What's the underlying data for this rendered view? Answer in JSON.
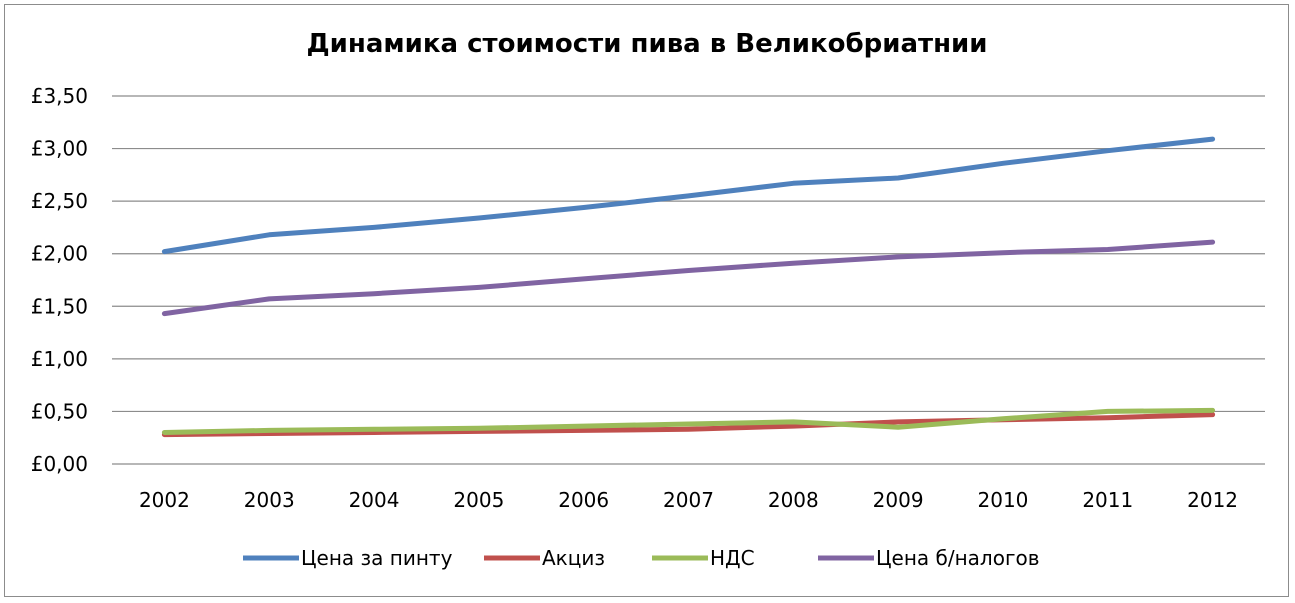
{
  "chart_data": {
    "type": "line",
    "title": "Динамика стоимости пива в Великобриатнии",
    "xlabel": "",
    "ylabel": "",
    "categories": [
      "2002",
      "2003",
      "2004",
      "2005",
      "2006",
      "2007",
      "2008",
      "2009",
      "2010",
      "2011",
      "2012"
    ],
    "y_ticks": [
      "£0,00",
      "£0,50",
      "£1,00",
      "£1,50",
      "£2,00",
      "£2,50",
      "£3,00",
      "£3,50"
    ],
    "ylim": [
      0,
      3.5
    ],
    "grid": true,
    "legend_position": "bottom",
    "series": [
      {
        "name": "Цена за пинту",
        "color": "#4f81bd",
        "values": [
          2.02,
          2.18,
          2.25,
          2.34,
          2.44,
          2.55,
          2.67,
          2.72,
          2.86,
          2.98,
          3.09
        ]
      },
      {
        "name": "Акциз",
        "color": "#c0504d",
        "values": [
          0.28,
          0.29,
          0.3,
          0.31,
          0.32,
          0.33,
          0.36,
          0.4,
          0.42,
          0.44,
          0.47
        ]
      },
      {
        "name": "НДС",
        "color": "#9bbb59",
        "values": [
          0.3,
          0.32,
          0.33,
          0.34,
          0.36,
          0.38,
          0.4,
          0.35,
          0.43,
          0.5,
          0.51
        ]
      },
      {
        "name": "Цена б/налогов",
        "color": "#8064a2",
        "values": [
          1.43,
          1.57,
          1.62,
          1.68,
          1.76,
          1.84,
          1.91,
          1.97,
          2.01,
          2.04,
          2.11
        ]
      }
    ]
  }
}
